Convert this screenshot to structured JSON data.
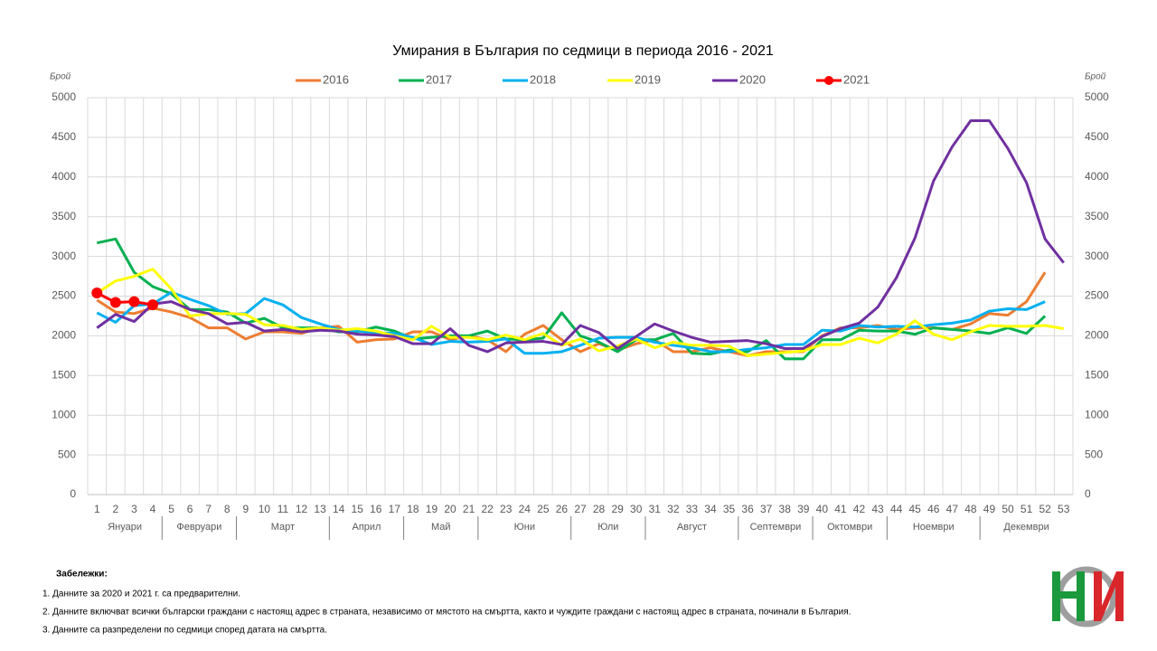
{
  "chart_data": {
    "type": "line",
    "title": "Умирания в България по седмици в периода 2016 - 2021",
    "y_label": "Брой",
    "y2_label": "Брой",
    "categories": [
      1,
      2,
      3,
      4,
      5,
      6,
      7,
      8,
      9,
      10,
      11,
      12,
      13,
      14,
      15,
      16,
      17,
      18,
      19,
      20,
      21,
      22,
      23,
      24,
      25,
      26,
      27,
      28,
      29,
      30,
      31,
      32,
      33,
      34,
      35,
      36,
      37,
      38,
      39,
      40,
      41,
      42,
      43,
      44,
      45,
      46,
      47,
      48,
      49,
      50,
      51,
      52,
      53
    ],
    "months": [
      {
        "label": "Януари",
        "start": 1,
        "end": 4
      },
      {
        "label": "Февруари",
        "start": 5,
        "end": 8
      },
      {
        "label": "Март",
        "start": 9,
        "end": 13
      },
      {
        "label": "Април",
        "start": 14,
        "end": 17
      },
      {
        "label": "Май",
        "start": 18,
        "end": 21
      },
      {
        "label": "Юни",
        "start": 22,
        "end": 26
      },
      {
        "label": "Юли",
        "start": 27,
        "end": 30
      },
      {
        "label": "Август",
        "start": 31,
        "end": 35
      },
      {
        "label": "Септември",
        "start": 36,
        "end": 39
      },
      {
        "label": "Октомври",
        "start": 40,
        "end": 43
      },
      {
        "label": "Ноември",
        "start": 44,
        "end": 48
      },
      {
        "label": "Декември",
        "start": 49,
        "end": 53
      }
    ],
    "series": [
      {
        "name": "2016",
        "color": "#ed7d31",
        "values": [
          2450,
          2300,
          2280,
          2350,
          2300,
          2230,
          2100,
          2100,
          1960,
          2050,
          2050,
          2030,
          2100,
          2120,
          1920,
          1950,
          1960,
          2050,
          2050,
          1950,
          2000,
          1950,
          1800,
          2020,
          2130,
          1950,
          1800,
          1900,
          1820,
          1900,
          1950,
          1800,
          1800,
          1850,
          1800,
          1750,
          1800,
          1800,
          1800,
          2000,
          2100,
          2100,
          2130,
          2080,
          2100,
          2100,
          2080,
          2150,
          2280,
          2260,
          2430,
          2800,
          null
        ]
      },
      {
        "name": "2017",
        "color": "#00b050",
        "values": [
          3170,
          3220,
          2800,
          2620,
          2530,
          2330,
          2330,
          2300,
          2160,
          2220,
          2100,
          2100,
          2100,
          2050,
          2050,
          2110,
          2060,
          1960,
          1980,
          2000,
          2000,
          2060,
          1960,
          1950,
          1970,
          2290,
          2000,
          1920,
          1800,
          1950,
          1950,
          2030,
          1780,
          1770,
          1820,
          1800,
          1940,
          1710,
          1710,
          1950,
          1950,
          2070,
          2060,
          2060,
          2020,
          2100,
          2080,
          2060,
          2030,
          2100,
          2030,
          2250,
          null
        ]
      },
      {
        "name": "2018",
        "color": "#00b0f0",
        "values": [
          2290,
          2170,
          2380,
          2400,
          2550,
          2460,
          2380,
          2270,
          2280,
          2470,
          2390,
          2230,
          2150,
          2080,
          2060,
          2040,
          2030,
          1980,
          1890,
          1930,
          1920,
          1930,
          1960,
          1780,
          1780,
          1800,
          1880,
          1970,
          1980,
          1980,
          1920,
          1880,
          1850,
          1800,
          1800,
          1830,
          1850,
          1890,
          1890,
          2070,
          2060,
          2130,
          2110,
          2120,
          2110,
          2140,
          2160,
          2200,
          2310,
          2340,
          2330,
          2430,
          null
        ]
      },
      {
        "name": "2019",
        "color": "#ffff00",
        "values": [
          2540,
          2690,
          2750,
          2840,
          2590,
          2250,
          2280,
          2280,
          2270,
          2140,
          2130,
          2080,
          2100,
          2070,
          2090,
          2060,
          2000,
          1950,
          2120,
          1980,
          1980,
          1950,
          2010,
          1950,
          2030,
          1880,
          1960,
          1810,
          1870,
          1960,
          1850,
          1920,
          1880,
          1880,
          1870,
          1750,
          1770,
          1790,
          1810,
          1890,
          1890,
          1970,
          1910,
          2020,
          2190,
          2020,
          1950,
          2050,
          2130,
          2120,
          2120,
          2130,
          2090
        ]
      },
      {
        "name": "2020",
        "color": "#7030a0",
        "values": [
          2100,
          2270,
          2180,
          2400,
          2430,
          2330,
          2280,
          2150,
          2170,
          2060,
          2080,
          2050,
          2070,
          2060,
          2020,
          2010,
          1990,
          1900,
          1900,
          2090,
          1880,
          1800,
          1910,
          1920,
          1930,
          1890,
          2130,
          2040,
          1840,
          1990,
          2150,
          2060,
          1980,
          1920,
          1930,
          1940,
          1900,
          1840,
          1840,
          1990,
          2090,
          2160,
          2360,
          2730,
          3230,
          3950,
          4380,
          4710,
          4710,
          4360,
          3930,
          3220,
          2920
        ]
      },
      {
        "name": "2021",
        "color": "#ff0000",
        "markers": true,
        "values": [
          2540,
          2420,
          2430,
          2390,
          null,
          null,
          null,
          null,
          null,
          null,
          null,
          null,
          null,
          null,
          null,
          null,
          null,
          null,
          null,
          null,
          null,
          null,
          null,
          null,
          null,
          null,
          null,
          null,
          null,
          null,
          null,
          null,
          null,
          null,
          null,
          null,
          null,
          null,
          null,
          null,
          null,
          null,
          null,
          null,
          null,
          null,
          null,
          null,
          null,
          null,
          null,
          null,
          null
        ]
      }
    ],
    "ylim": [
      0,
      5000
    ],
    "yticks": [
      0,
      500,
      1000,
      1500,
      2000,
      2500,
      3000,
      3500,
      4000,
      4500,
      5000
    ],
    "y2lim": [
      0,
      5000
    ],
    "y2ticks": [
      0,
      500,
      1000,
      1500,
      2000,
      2500,
      3000,
      3500,
      4000,
      4500,
      5000
    ],
    "grid": true,
    "legend": "top"
  },
  "notes": {
    "heading": "Забележки:",
    "items": [
      "1. Данните за 2020 и 2021 г. са предварителни.",
      "2. Данните включват всички български граждани с настоящ адрес в страната, независимо от мястото на смъртта, както и чуждите граждани с настоящ адрес в страната, починали в България.",
      "3. Данните са разпределени по седмици според датата на смъртта."
    ]
  }
}
